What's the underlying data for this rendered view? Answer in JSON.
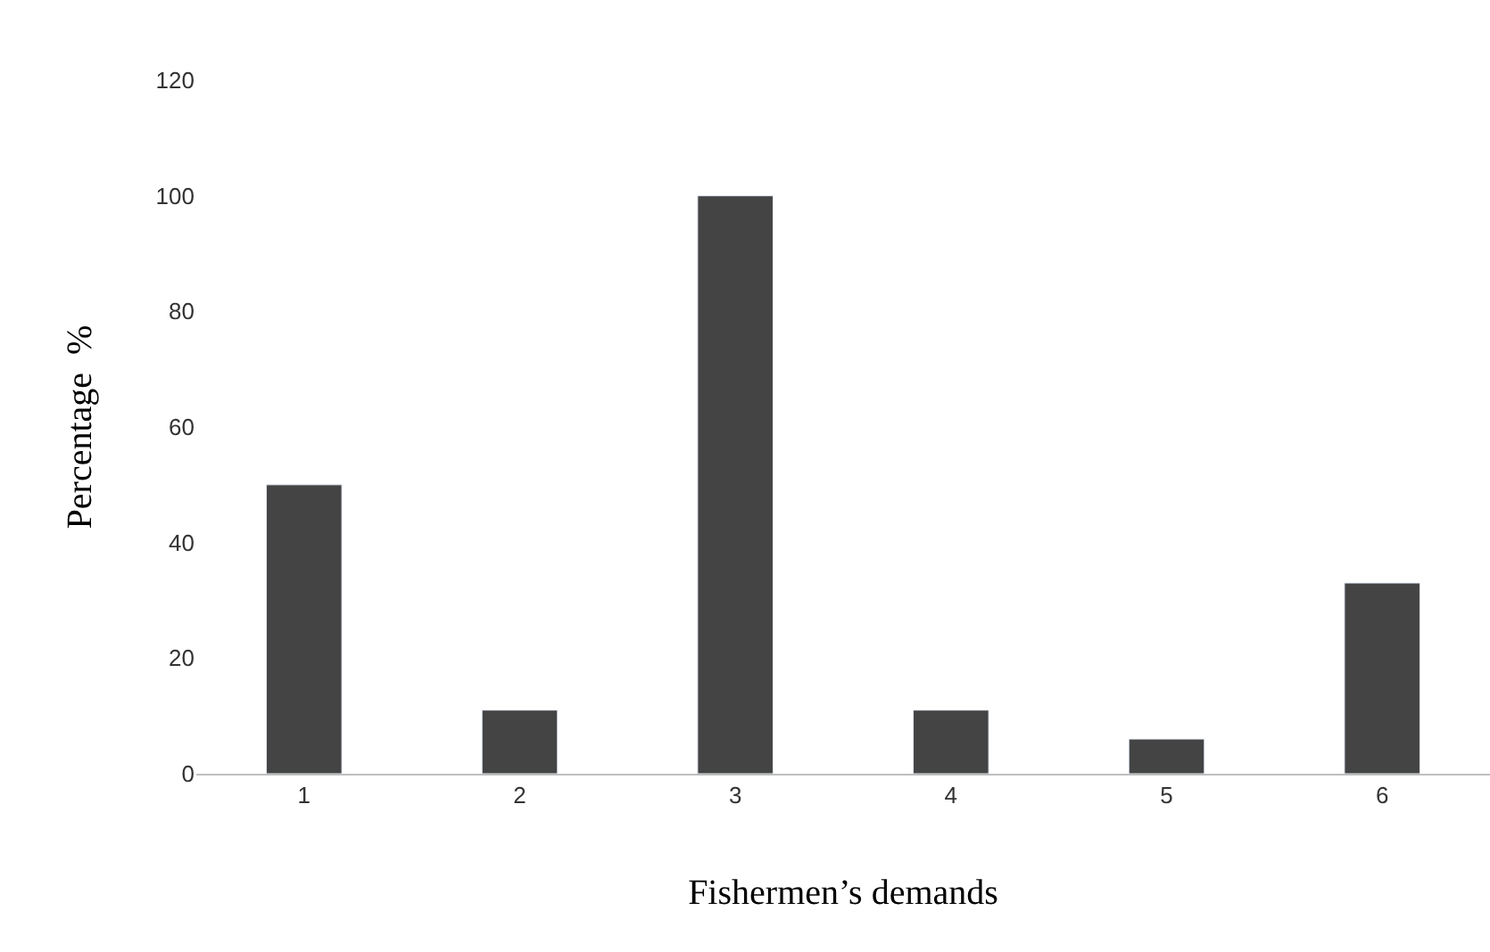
{
  "chart_data": {
    "type": "bar",
    "xlabel": "Fishermen’s demands",
    "ylabel": "Percentage  %",
    "categories": [
      "1",
      "2",
      "3",
      "4",
      "5",
      "6"
    ],
    "values": [
      50,
      11,
      100,
      11,
      6,
      33
    ],
    "color": "#444444",
    "ylim": [
      0,
      120
    ],
    "yticks": [
      0,
      20,
      40,
      60,
      80,
      100,
      120
    ]
  }
}
